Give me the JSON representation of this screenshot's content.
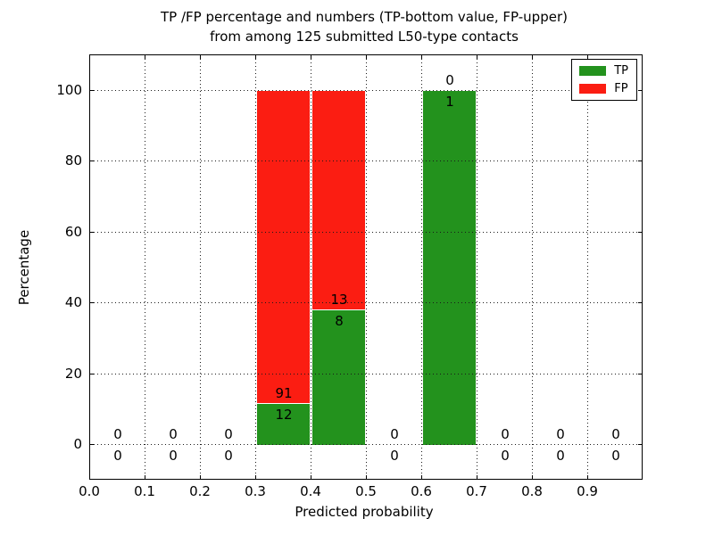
{
  "figure": {
    "title_line1": "TP /FP percentage and numbers (TP-bottom value, FP-upper)",
    "title_line2": "from among 125 submitted L50-type contacts"
  },
  "chart_data": {
    "type": "bar",
    "stacked": true,
    "title": "TP /FP percentage and numbers (TP-bottom value, FP-upper)\nfrom among 125 submitted L50-type contacts",
    "xlabel": "Predicted probability",
    "ylabel": "Percentage",
    "xlim": [
      0.0,
      1.0
    ],
    "ylim": [
      -10,
      110
    ],
    "xticks": [
      0.0,
      0.1,
      0.2,
      0.3,
      0.4,
      0.5,
      0.6,
      0.7,
      0.8,
      0.9
    ],
    "xtick_labels": [
      "0.0",
      "0.1",
      "0.2",
      "0.3",
      "0.4",
      "0.5",
      "0.6",
      "0.7",
      "0.8",
      "0.9"
    ],
    "yticks": [
      0,
      20,
      40,
      60,
      80,
      100
    ],
    "ytick_labels": [
      "0",
      "20",
      "40",
      "60",
      "80",
      "100"
    ],
    "grid": true,
    "grid_style": "dotted",
    "bin_width": 0.1,
    "bin_starts": [
      0.0,
      0.1,
      0.2,
      0.3,
      0.4,
      0.5,
      0.6,
      0.7,
      0.8,
      0.9
    ],
    "series": [
      {
        "name": "TP",
        "color": "#23921d",
        "counts": [
          0,
          0,
          0,
          12,
          8,
          0,
          1,
          0,
          0,
          0
        ]
      },
      {
        "name": "FP",
        "color": "#fb1d12",
        "counts": [
          0,
          0,
          0,
          91,
          13,
          0,
          0,
          0,
          0,
          0
        ]
      }
    ],
    "bar_heights_note": "heights are percentages: count/(TP+FP)*100 per bin, stacked to 100%; labels show raw counts, TP below boundary, FP above",
    "total_contacts": 125,
    "legend": {
      "position": "upper right",
      "entries": [
        "TP",
        "FP"
      ]
    }
  }
}
